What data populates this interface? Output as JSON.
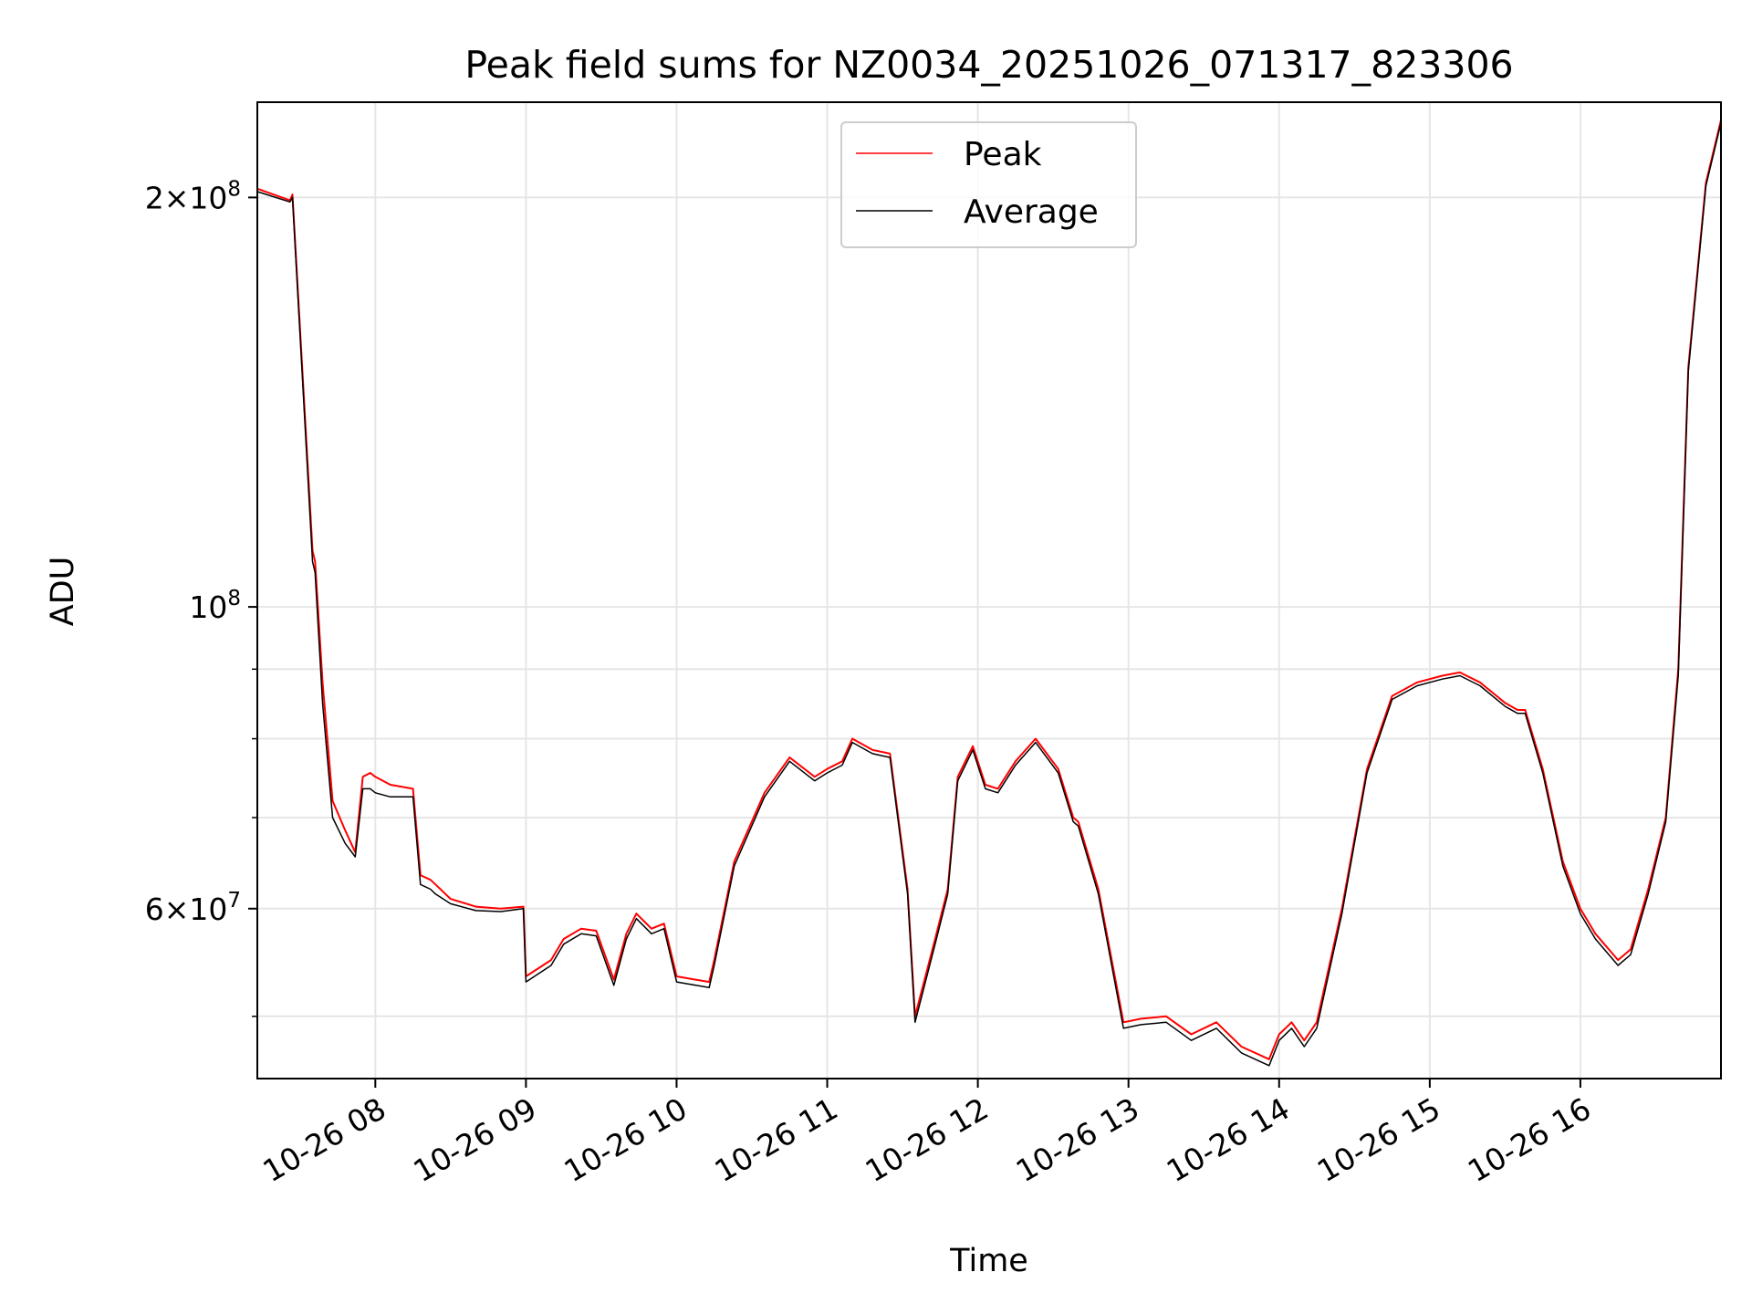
{
  "chart_data": {
    "type": "line",
    "title": "Peak field sums for NZ0034_20251026_071317_823306",
    "xlabel": "Time",
    "ylabel": "ADU",
    "y_scale": "log",
    "xlim": [
      "2025-10-26 07:13",
      "2025-10-26 16:56"
    ],
    "ylim": [
      45000000,
      235000000
    ],
    "x_ticks": [
      "10-26 08",
      "10-26 09",
      "10-26 10",
      "10-26 11",
      "10-26 12",
      "10-26 13",
      "10-26 14",
      "10-26 15",
      "10-26 16"
    ],
    "y_ticks": [
      {
        "value": 200000000,
        "base": "2×10",
        "exp": "8"
      },
      {
        "value": 100000000,
        "base": "10",
        "exp": "8"
      },
      {
        "value": 60000000,
        "base": "6×10",
        "exp": "7"
      }
    ],
    "y_minor_ticks": [
      50000000,
      70000000,
      80000000,
      90000000
    ],
    "grid": true,
    "legend_position": "upper-center",
    "series": [
      {
        "name": "Peak",
        "color": "#ff0000",
        "x": [
          "2025-10-26 07:13",
          "2025-10-26 07:26",
          "2025-10-26 07:27",
          "2025-10-26 07:35",
          "2025-10-26 07:36",
          "2025-10-26 07:39",
          "2025-10-26 07:43",
          "2025-10-26 07:48",
          "2025-10-26 07:52",
          "2025-10-26 07:55",
          "2025-10-26 07:58",
          "2025-10-26 08:00",
          "2025-10-26 08:06",
          "2025-10-26 08:15",
          "2025-10-26 08:18",
          "2025-10-26 08:22",
          "2025-10-26 08:24",
          "2025-10-26 08:30",
          "2025-10-26 08:40",
          "2025-10-26 08:50",
          "2025-10-26 08:59",
          "2025-10-26 09:00",
          "2025-10-26 09:10",
          "2025-10-26 09:15",
          "2025-10-26 09:22",
          "2025-10-26 09:28",
          "2025-10-26 09:35",
          "2025-10-26 09:40",
          "2025-10-26 09:44",
          "2025-10-26 09:50",
          "2025-10-26 09:55",
          "2025-10-26 10:00",
          "2025-10-26 10:05",
          "2025-10-26 10:13",
          "2025-10-26 10:15",
          "2025-10-26 10:23",
          "2025-10-26 10:35",
          "2025-10-26 10:45",
          "2025-10-26 10:55",
          "2025-10-26 11:00",
          "2025-10-26 11:06",
          "2025-10-26 11:10",
          "2025-10-26 11:18",
          "2025-10-26 11:25",
          "2025-10-26 11:32",
          "2025-10-26 11:35",
          "2025-10-26 11:43",
          "2025-10-26 11:48",
          "2025-10-26 11:52",
          "2025-10-26 11:58",
          "2025-10-26 12:03",
          "2025-10-26 12:08",
          "2025-10-26 12:15",
          "2025-10-26 12:23",
          "2025-10-26 12:32",
          "2025-10-26 12:38",
          "2025-10-26 12:40",
          "2025-10-26 12:48",
          "2025-10-26 12:58",
          "2025-10-26 13:05",
          "2025-10-26 13:15",
          "2025-10-26 13:25",
          "2025-10-26 13:35",
          "2025-10-26 13:45",
          "2025-10-26 13:56",
          "2025-10-26 14:00",
          "2025-10-26 14:05",
          "2025-10-26 14:10",
          "2025-10-26 14:15",
          "2025-10-26 14:25",
          "2025-10-26 14:35",
          "2025-10-26 14:45",
          "2025-10-26 14:55",
          "2025-10-26 15:05",
          "2025-10-26 15:12",
          "2025-10-26 15:20",
          "2025-10-26 15:30",
          "2025-10-26 15:35",
          "2025-10-26 15:38",
          "2025-10-26 15:45",
          "2025-10-26 15:53",
          "2025-10-26 16:00",
          "2025-10-26 16:06",
          "2025-10-26 16:15",
          "2025-10-26 16:20",
          "2025-10-26 16:27",
          "2025-10-26 16:34",
          "2025-10-26 16:39",
          "2025-10-26 16:43",
          "2025-10-26 16:50",
          "2025-10-26 16:56"
        ],
        "values": [
          203000000,
          199000000,
          201000000,
          110000000,
          108000000,
          88000000,
          72000000,
          68500000,
          66000000,
          75000000,
          75500000,
          75000000,
          74000000,
          73500000,
          63500000,
          63000000,
          62500000,
          61000000,
          60200000,
          60000000,
          60200000,
          53500000,
          55000000,
          57000000,
          58000000,
          57800000,
          53200000,
          57500000,
          59500000,
          58000000,
          58500000,
          53500000,
          53300000,
          53000000,
          55000000,
          65000000,
          73000000,
          77500000,
          75000000,
          76000000,
          77000000,
          80000000,
          78500000,
          78000000,
          62000000,
          50000000,
          57000000,
          62000000,
          75000000,
          79000000,
          74000000,
          73500000,
          77000000,
          80000000,
          76000000,
          70000000,
          69500000,
          62000000,
          49500000,
          49800000,
          50000000,
          48500000,
          49500000,
          47500000,
          46500000,
          48500000,
          49500000,
          48000000,
          49500000,
          60000000,
          76000000,
          86000000,
          88000000,
          89000000,
          89500000,
          88000000,
          85000000,
          84000000,
          84000000,
          76000000,
          65000000,
          60000000,
          57500000,
          55000000,
          56000000,
          62000000,
          70000000,
          90000000,
          150000000,
          205000000,
          228000000
        ]
      },
      {
        "name": "Average",
        "color": "#000000",
        "x": [
          "2025-10-26 07:13",
          "2025-10-26 07:26",
          "2025-10-26 07:27",
          "2025-10-26 07:35",
          "2025-10-26 07:36",
          "2025-10-26 07:39",
          "2025-10-26 07:43",
          "2025-10-26 07:48",
          "2025-10-26 07:52",
          "2025-10-26 07:55",
          "2025-10-26 07:58",
          "2025-10-26 08:00",
          "2025-10-26 08:06",
          "2025-10-26 08:15",
          "2025-10-26 08:18",
          "2025-10-26 08:22",
          "2025-10-26 08:24",
          "2025-10-26 08:30",
          "2025-10-26 08:40",
          "2025-10-26 08:50",
          "2025-10-26 08:59",
          "2025-10-26 09:00",
          "2025-10-26 09:10",
          "2025-10-26 09:15",
          "2025-10-26 09:22",
          "2025-10-26 09:28",
          "2025-10-26 09:35",
          "2025-10-26 09:40",
          "2025-10-26 09:44",
          "2025-10-26 09:50",
          "2025-10-26 09:55",
          "2025-10-26 10:00",
          "2025-10-26 10:05",
          "2025-10-26 10:13",
          "2025-10-26 10:15",
          "2025-10-26 10:23",
          "2025-10-26 10:35",
          "2025-10-26 10:45",
          "2025-10-26 10:55",
          "2025-10-26 11:00",
          "2025-10-26 11:06",
          "2025-10-26 11:10",
          "2025-10-26 11:18",
          "2025-10-26 11:25",
          "2025-10-26 11:32",
          "2025-10-26 11:35",
          "2025-10-26 11:43",
          "2025-10-26 11:48",
          "2025-10-26 11:52",
          "2025-10-26 11:58",
          "2025-10-26 12:03",
          "2025-10-26 12:08",
          "2025-10-26 12:15",
          "2025-10-26 12:23",
          "2025-10-26 12:32",
          "2025-10-26 12:38",
          "2025-10-26 12:40",
          "2025-10-26 12:48",
          "2025-10-26 12:58",
          "2025-10-26 13:05",
          "2025-10-26 13:15",
          "2025-10-26 13:25",
          "2025-10-26 13:35",
          "2025-10-26 13:45",
          "2025-10-26 13:56",
          "2025-10-26 14:00",
          "2025-10-26 14:05",
          "2025-10-26 14:10",
          "2025-10-26 14:15",
          "2025-10-26 14:25",
          "2025-10-26 14:35",
          "2025-10-26 14:45",
          "2025-10-26 14:55",
          "2025-10-26 15:05",
          "2025-10-26 15:12",
          "2025-10-26 15:20",
          "2025-10-26 15:30",
          "2025-10-26 15:35",
          "2025-10-26 15:38",
          "2025-10-26 15:45",
          "2025-10-26 15:53",
          "2025-10-26 16:00",
          "2025-10-26 16:06",
          "2025-10-26 16:15",
          "2025-10-26 16:20",
          "2025-10-26 16:27",
          "2025-10-26 16:34",
          "2025-10-26 16:39",
          "2025-10-26 16:43",
          "2025-10-26 16:50",
          "2025-10-26 16:56"
        ],
        "values": [
          202000000,
          198500000,
          200000000,
          108000000,
          106000000,
          85000000,
          70000000,
          67000000,
          65500000,
          73500000,
          73500000,
          73000000,
          72500000,
          72500000,
          62500000,
          62000000,
          61500000,
          60500000,
          59800000,
          59700000,
          60000000,
          53000000,
          54500000,
          56500000,
          57500000,
          57300000,
          52700000,
          57000000,
          59000000,
          57500000,
          58000000,
          53000000,
          52800000,
          52500000,
          54500000,
          64500000,
          72500000,
          77000000,
          74500000,
          75500000,
          76500000,
          79500000,
          78000000,
          77500000,
          61500000,
          49500000,
          56500000,
          61500000,
          74500000,
          78500000,
          73500000,
          73000000,
          76500000,
          79500000,
          75500000,
          69500000,
          69000000,
          61500000,
          49000000,
          49300000,
          49500000,
          48000000,
          49000000,
          47000000,
          46000000,
          48000000,
          49000000,
          47500000,
          49000000,
          59500000,
          75500000,
          85500000,
          87500000,
          88500000,
          89000000,
          87500000,
          84500000,
          83500000,
          83500000,
          75500000,
          64500000,
          59500000,
          57000000,
          54500000,
          55500000,
          61500000,
          69500000,
          89000000,
          149000000,
          204000000,
          227000000
        ]
      }
    ]
  }
}
